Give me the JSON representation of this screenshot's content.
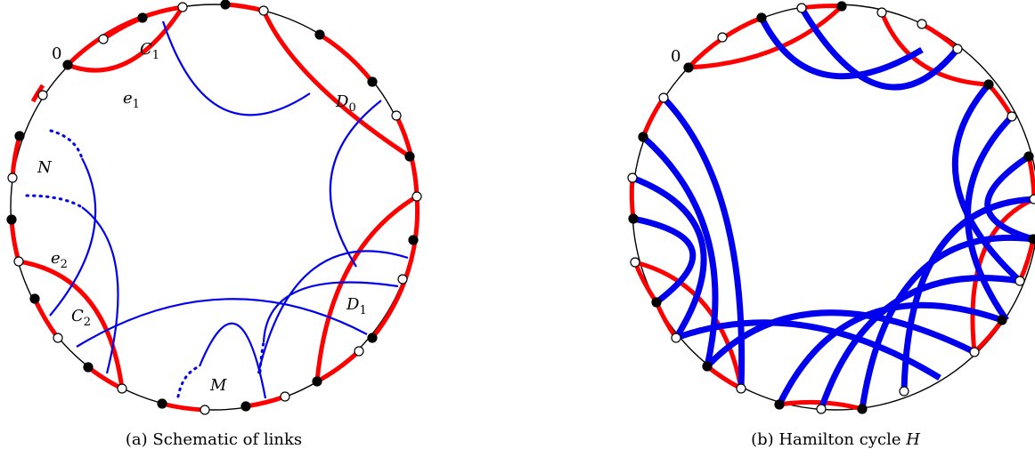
{
  "left_panel": {
    "caption": "(a) Schematic of links",
    "zero_label": "0",
    "labels": [
      {
        "id": "C1",
        "main": "C",
        "sub": "1"
      },
      {
        "id": "e1",
        "main": "e",
        "sub": "1"
      },
      {
        "id": "D0",
        "main": "D",
        "sub": "0"
      },
      {
        "id": "N",
        "main": "N",
        "sub": ""
      },
      {
        "id": "e2",
        "main": "e",
        "sub": "2"
      },
      {
        "id": "C2",
        "main": "C",
        "sub": "2"
      },
      {
        "id": "D1",
        "main": "D",
        "sub": "1"
      },
      {
        "id": "M",
        "main": "M",
        "sub": ""
      }
    ]
  },
  "right_panel": {
    "caption_text": "(b) Hamilton cycle ",
    "caption_symbol": "H",
    "zero_label": "0"
  },
  "colors": {
    "red_edge": "#ff0000",
    "blue_link": "#0000ee",
    "black_vertex": "#000000",
    "white_vertex": "#ffffff"
  }
}
